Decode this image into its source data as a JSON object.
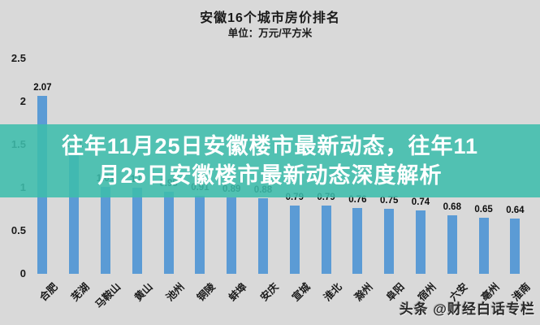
{
  "page": {
    "title": "安徽16个城市房价排名",
    "subtitle": "单位：万元/平方米",
    "watermark": "头条 @财经白话专栏"
  },
  "overlay_banner": {
    "line1": "往年11月25日安徽楼市最新动态，往年11",
    "line2": "月25日安徽楼市最新动态深度解析",
    "background_color": "#3ebdac",
    "opacity": 0.88,
    "text_color": "#ffffff"
  },
  "colors": {
    "background": "#d9d9d9",
    "bar": "#5b9bd5",
    "text": "#1a1a1a"
  },
  "chart_data": {
    "type": "bar",
    "title": "安徽16个城市房价排名",
    "unit_label": "单位：万元/平方米",
    "categories": [
      "合肥",
      "芜湖",
      "马鞍山",
      "黄山",
      "池州",
      "铜陵",
      "蚌埠",
      "安庆",
      "宣城",
      "淮北",
      "滁州",
      "阜阳",
      "宿州",
      "六安",
      "亳州",
      "淮南"
    ],
    "values": [
      2.07,
      1.41,
      1.01,
      1.0,
      0.95,
      0.91,
      0.89,
      0.88,
      0.79,
      0.79,
      0.76,
      0.75,
      0.74,
      0.68,
      0.65,
      0.64
    ],
    "value_labels": [
      "2.07",
      "1.41",
      "1.01",
      "1.0",
      "0.95",
      "0.91",
      "0.89",
      "0.88",
      "0.79",
      "0.79",
      "0.76",
      "0.75",
      "0.74",
      "0.68",
      "0.65",
      "0.64"
    ],
    "yticks": [
      "2.5",
      "2",
      "1.5",
      "1",
      "0.5",
      "0"
    ],
    "ytick_values": [
      2.5,
      2,
      1.5,
      1,
      0.5,
      0
    ],
    "ylim": [
      0,
      2.5
    ],
    "grid": false,
    "legend": false,
    "xlabel": "",
    "ylabel": ""
  }
}
